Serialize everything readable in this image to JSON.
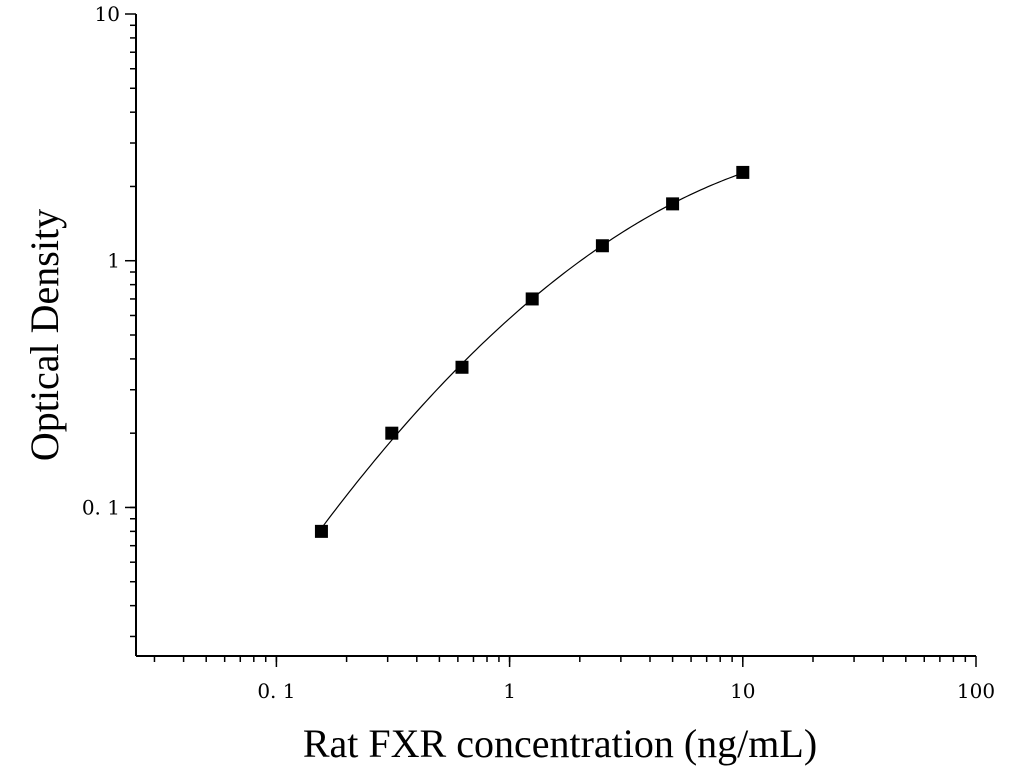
{
  "chart_data": {
    "type": "scatter",
    "title": "",
    "xlabel": "Rat FXR concentration (ng/mL)",
    "ylabel": "Optical Density",
    "x_scale": "log",
    "y_scale": "log",
    "xlim": [
      0.025,
      100
    ],
    "ylim": [
      0.025,
      10
    ],
    "x_ticks": [
      {
        "value": 0.1,
        "label": "0. 1"
      },
      {
        "value": 1,
        "label": "1"
      },
      {
        "value": 10,
        "label": "10"
      },
      {
        "value": 100,
        "label": "100"
      }
    ],
    "y_ticks": [
      {
        "value": 0.1,
        "label": "0. 1"
      },
      {
        "value": 1,
        "label": "1"
      },
      {
        "value": 10,
        "label": "10"
      }
    ],
    "grid": false,
    "legend": "none",
    "series": [
      {
        "marker": "square",
        "color": "#000000",
        "x": [
          0.156,
          0.3125,
          0.625,
          1.25,
          2.5,
          5,
          10
        ],
        "y": [
          0.08,
          0.2,
          0.37,
          0.7,
          1.15,
          1.7,
          2.28
        ]
      }
    ],
    "fit_curve": {
      "style": "solid",
      "color": "#000000"
    }
  }
}
